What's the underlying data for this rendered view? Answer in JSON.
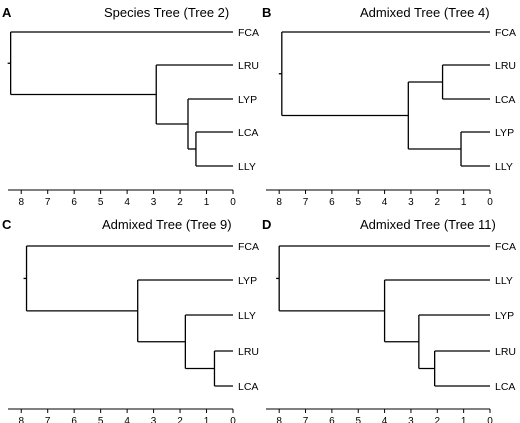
{
  "figure": {
    "panels": [
      {
        "letter": "A",
        "title": "Species Tree (Tree 2)",
        "leaves": [
          "FCA",
          "LRU",
          "LYP",
          "LCA",
          "LLY"
        ],
        "root_height": 8.4,
        "tree": {
          "h": 8.4,
          "c": [
            {
              "leaf": 0
            },
            {
              "h": 2.9,
              "c": [
                {
                  "leaf": 1
                },
                {
                  "h": 1.7,
                  "c": [
                    {
                      "leaf": 2
                    },
                    {
                      "h": 1.4,
                      "c": [
                        {
                          "leaf": 3
                        },
                        {
                          "leaf": 4
                        }
                      ]
                    }
                  ]
                }
              ]
            }
          ]
        }
      },
      {
        "letter": "B",
        "title": "Admixed Tree (Tree 4)",
        "leaves": [
          "FCA",
          "LRU",
          "LCA",
          "LYP",
          "LLY"
        ],
        "root_height": 7.9,
        "tree": {
          "h": 7.9,
          "c": [
            {
              "leaf": 0
            },
            {
              "h": 3.1,
              "c": [
                {
                  "h": 1.8,
                  "c": [
                    {
                      "leaf": 1
                    },
                    {
                      "leaf": 2
                    }
                  ]
                },
                {
                  "h": 1.1,
                  "c": [
                    {
                      "leaf": 3
                    },
                    {
                      "leaf": 4
                    }
                  ]
                }
              ]
            }
          ]
        }
      },
      {
        "letter": "C",
        "title": "Admixed Tree (Tree 9)",
        "leaves": [
          "FCA",
          "LYP",
          "LLY",
          "LRU",
          "LCA"
        ],
        "root_height": 7.8,
        "tree": {
          "h": 7.8,
          "c": [
            {
              "leaf": 0
            },
            {
              "h": 3.6,
              "c": [
                {
                  "leaf": 1
                },
                {
                  "h": 1.8,
                  "c": [
                    {
                      "leaf": 2
                    },
                    {
                      "h": 0.7,
                      "c": [
                        {
                          "leaf": 3
                        },
                        {
                          "leaf": 4
                        }
                      ]
                    }
                  ]
                }
              ]
            }
          ]
        }
      },
      {
        "letter": "D",
        "title": "Admixed Tree (Tree 11)",
        "leaves": [
          "FCA",
          "LLY",
          "LYP",
          "LRU",
          "LCA"
        ],
        "root_height": 8.0,
        "tree": {
          "h": 8.0,
          "c": [
            {
              "leaf": 0
            },
            {
              "h": 4.0,
              "c": [
                {
                  "leaf": 1
                },
                {
                  "h": 2.7,
                  "c": [
                    {
                      "leaf": 2
                    },
                    {
                      "h": 2.1,
                      "c": [
                        {
                          "leaf": 3
                        },
                        {
                          "leaf": 4
                        }
                      ]
                    }
                  ]
                }
              ]
            }
          ]
        }
      }
    ],
    "axis": {
      "ticks": [
        8,
        7,
        6,
        5,
        4,
        3,
        2,
        1,
        0
      ],
      "max": 8.5,
      "min": 0
    }
  }
}
